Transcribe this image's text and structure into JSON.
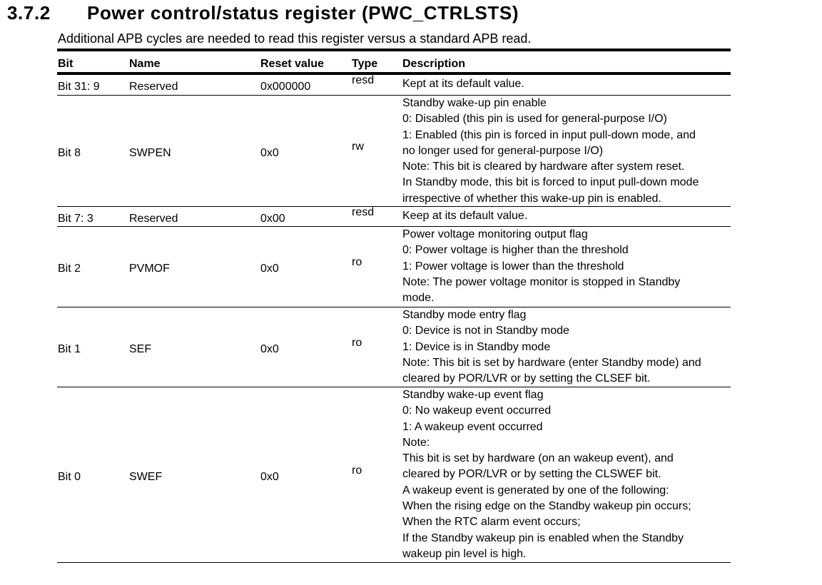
{
  "section": {
    "number": "3.7.2",
    "title": "Power control/status register (PWC_CTRLSTS)"
  },
  "subtitle": "Additional APB cycles are needed to read this register versus a standard APB read.",
  "headers": [
    "Bit",
    "Name",
    "Reset value",
    "Type",
    "Description"
  ],
  "rows": [
    {
      "bit": "Bit 31: 9",
      "name": "Reserved",
      "reset": "0x000000",
      "type": "resd",
      "desc": [
        "Kept at its default value."
      ]
    },
    {
      "bit": "Bit 8",
      "name": "SWPEN",
      "reset": "0x0",
      "type": "rw",
      "desc": [
        "Standby wake-up pin enable",
        "0: Disabled (this pin is used for general-purpose I/O)",
        "1: Enabled (this pin is forced in input pull-down mode, and",
        "no longer used for general-purpose I/O)",
        "Note: This bit is cleared by hardware after system reset.",
        "In Standby mode, this bit is forced to input pull-down mode",
        "irrespective of whether this wake-up pin is enabled."
      ]
    },
    {
      "bit": "Bit 7: 3",
      "name": "Reserved",
      "reset": "0x00",
      "type": "resd",
      "desc": [
        "Keep at its default value."
      ]
    },
    {
      "bit": "Bit 2",
      "name": "PVMOF",
      "reset": "0x0",
      "type": "ro",
      "desc": [
        "Power voltage monitoring output flag",
        "0: Power voltage is higher than the threshold",
        "1: Power voltage is lower than the threshold",
        "Note: The power voltage monitor is stopped in Standby",
        "mode."
      ]
    },
    {
      "bit": "Bit 1",
      "name": "SEF",
      "reset": "0x0",
      "type": "ro",
      "desc": [
        "Standby mode entry flag",
        "0: Device is not in Standby mode",
        "1: Device is in Standby mode",
        "Note: This bit is set by hardware (enter Standby mode) and",
        "cleared by POR/LVR or by setting the CLSEF bit."
      ]
    },
    {
      "bit": "Bit 0",
      "name": "SWEF",
      "reset": "0x0",
      "type": "ro",
      "desc": [
        "Standby wake-up event flag",
        "0: No wakeup event occurred",
        "1: A wakeup event occurred",
        "Note:",
        "This bit is set by hardware (on an wakeup event), and",
        "cleared by POR/LVR or by setting the CLSWEF bit.",
        "A wakeup event is generated by one of the following:",
        "When the rising edge on the Standby wakeup pin occurs;",
        "When the RTC alarm event occurs;",
        "If the Standby wakeup pin is enabled when the Standby",
        "wakeup pin level is high."
      ]
    }
  ]
}
